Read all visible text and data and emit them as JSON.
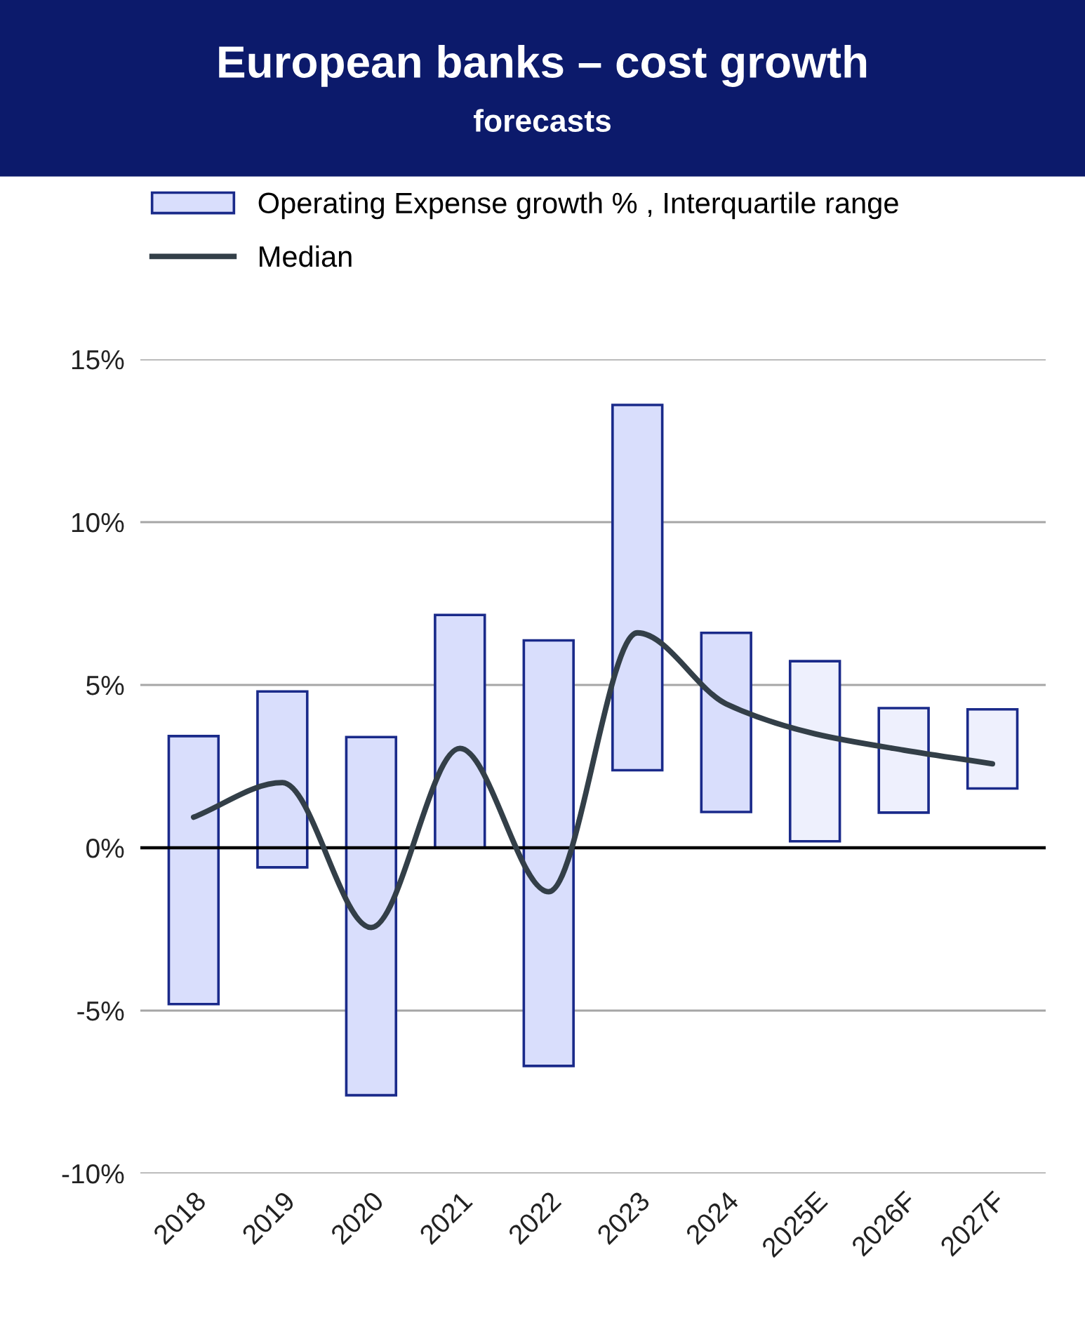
{
  "chart_data": {
    "type": "bar",
    "title": "European banks – cost growth",
    "subtitle": "forecasts",
    "categories": [
      "2018",
      "2019",
      "2020",
      "2021",
      "2022",
      "2023",
      "2024",
      "2025E",
      "2026F",
      "2027F"
    ],
    "series": [
      {
        "name": "Operating Expense growth % , Interquartile range",
        "color": "#d9defc",
        "colors": [
          "#d9defc",
          "#d9defc",
          "#d9defc",
          "#d9defc",
          "#d9defc",
          "#d9defc",
          "#d9defc",
          "#eef0fd",
          "#eef0fd",
          "#eef0fd"
        ],
        "base": [
          -4.8,
          -0.6,
          -7.6,
          0,
          -6.7,
          2.38,
          1.1,
          0.2,
          1.08,
          1.82
        ],
        "values": [
          8.23,
          5.4,
          11.0,
          7.15,
          13.07,
          11.22,
          5.5,
          5.53,
          3.21,
          2.43
        ]
      },
      {
        "name": "Median",
        "type": "line",
        "color": "#333f48",
        "values": [
          0.94,
          2.0,
          -2.45,
          3.05,
          -1.35,
          6.6,
          4.42,
          3.5,
          3.0,
          2.58
        ]
      }
    ],
    "ylim": [
      -10,
      15
    ],
    "yticks": [
      {
        "value": -10,
        "label": "-10%"
      },
      {
        "value": -5,
        "label": "-5%"
      },
      {
        "value": 0,
        "label": "0%"
      },
      {
        "value": 5,
        "label": "5%"
      },
      {
        "value": 10,
        "label": "10%"
      },
      {
        "value": 15,
        "label": "15%"
      }
    ],
    "ref_lines": [
      {
        "axis": "y",
        "value": 0,
        "color": "#000000"
      }
    ],
    "grid": "y",
    "legend": "top",
    "marker": "none",
    "line_style": "solid"
  }
}
